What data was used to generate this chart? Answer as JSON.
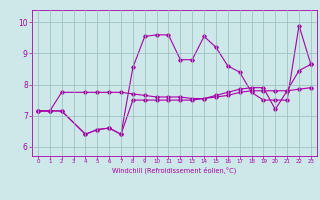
{
  "xlabel": "Windchill (Refroidissement éolien,°C)",
  "background_color": "#cce8e8",
  "line_color": "#aa00aa",
  "x_ticks": [
    0,
    1,
    2,
    3,
    4,
    5,
    6,
    7,
    8,
    9,
    10,
    11,
    12,
    13,
    14,
    15,
    16,
    17,
    18,
    19,
    20,
    21,
    22,
    23
  ],
  "ylim": [
    5.7,
    10.4
  ],
  "xlim": [
    -0.5,
    23.5
  ],
  "yticks": [
    6,
    7,
    8,
    9,
    10
  ],
  "series1_x": [
    0,
    1,
    2,
    4,
    5,
    6,
    7,
    8,
    9,
    10,
    11,
    12,
    13,
    14,
    15,
    16,
    17,
    18,
    19,
    20,
    21,
    22,
    23
  ],
  "series1_y": [
    7.15,
    7.15,
    7.15,
    6.4,
    6.55,
    6.6,
    6.4,
    8.55,
    9.55,
    9.6,
    9.6,
    8.8,
    8.8,
    9.55,
    9.2,
    8.6,
    8.4,
    7.75,
    7.5,
    7.5,
    7.5,
    9.9,
    8.65
  ],
  "series2_x": [
    0,
    1,
    2,
    4,
    5,
    6,
    7,
    8,
    9,
    10,
    11,
    12,
    13,
    14,
    15,
    16,
    17,
    18,
    19,
    20,
    21,
    22,
    23
  ],
  "series2_y": [
    7.15,
    7.15,
    7.75,
    7.75,
    7.75,
    7.75,
    7.75,
    7.7,
    7.65,
    7.6,
    7.6,
    7.6,
    7.55,
    7.55,
    7.6,
    7.65,
    7.75,
    7.8,
    7.8,
    7.8,
    7.8,
    7.85,
    7.9
  ],
  "series3_x": [
    0,
    1,
    2,
    4,
    5,
    6,
    7,
    8,
    9,
    10,
    11,
    12,
    13,
    14,
    15,
    16,
    17,
    18,
    19,
    20,
    21,
    22,
    23
  ],
  "series3_y": [
    7.15,
    7.15,
    7.15,
    6.4,
    6.55,
    6.6,
    6.4,
    7.5,
    7.5,
    7.5,
    7.5,
    7.5,
    7.5,
    7.55,
    7.65,
    7.75,
    7.85,
    7.9,
    7.9,
    7.2,
    7.8,
    8.45,
    8.65
  ],
  "grid_color": "#99bbbb"
}
